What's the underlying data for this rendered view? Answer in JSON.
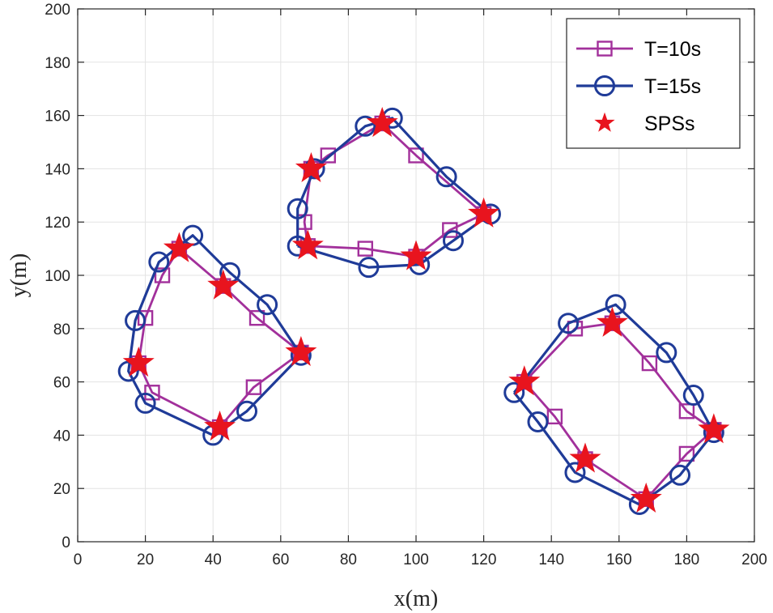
{
  "chart_data": {
    "type": "line",
    "xlabel": "x(m)",
    "ylabel": "y(m)",
    "xlim": [
      0,
      200
    ],
    "ylim": [
      0,
      200
    ],
    "xticks": [
      0,
      20,
      40,
      60,
      80,
      100,
      120,
      140,
      160,
      180,
      200
    ],
    "yticks": [
      0,
      20,
      40,
      60,
      80,
      100,
      120,
      140,
      160,
      180,
      200
    ],
    "grid": true,
    "legend_position": "top-right",
    "colors": {
      "t10": "#a2309b",
      "t15": "#1f3b98",
      "sps": "#e8141e",
      "grid": "#e3e3e3",
      "axis": "#262626"
    },
    "series": [
      {
        "name": "T=10s",
        "marker": "square",
        "paths": [
          [
            [
              42,
              43
            ],
            [
              52,
              58
            ],
            [
              66,
              71
            ],
            [
              53,
              84
            ],
            [
              43,
              96
            ],
            [
              30,
              110
            ],
            [
              25,
              100
            ],
            [
              20,
              84
            ],
            [
              18,
              67
            ],
            [
              22,
              56
            ],
            [
              42,
              43
            ]
          ],
          [
            [
              69,
              140
            ],
            [
              74,
              145
            ],
            [
              90,
              157
            ],
            [
              100,
              145
            ],
            [
              120,
              123
            ],
            [
              110,
              117
            ],
            [
              100,
              107
            ],
            [
              85,
              110
            ],
            [
              68,
              111
            ],
            [
              67,
              120
            ],
            [
              69,
              140
            ]
          ],
          [
            [
              132,
              60
            ],
            [
              141,
              47
            ],
            [
              150,
              31
            ],
            [
              168,
              16
            ],
            [
              180,
              33
            ],
            [
              188,
              42
            ],
            [
              180,
              49
            ],
            [
              169,
              67
            ],
            [
              158,
              82
            ],
            [
              147,
              80
            ],
            [
              132,
              60
            ]
          ]
        ]
      },
      {
        "name": "T=15s",
        "marker": "circle",
        "paths": [
          [
            [
              40,
              40
            ],
            [
              50,
              49
            ],
            [
              66,
              70
            ],
            [
              56,
              89
            ],
            [
              45,
              101
            ],
            [
              34,
              115
            ],
            [
              24,
              105
            ],
            [
              17,
              83
            ],
            [
              15,
              64
            ],
            [
              20,
              52
            ],
            [
              40,
              40
            ]
          ],
          [
            [
              65,
              111
            ],
            [
              65,
              125
            ],
            [
              70,
              140
            ],
            [
              85,
              156
            ],
            [
              93,
              159
            ],
            [
              109,
              137
            ],
            [
              122,
              123
            ],
            [
              111,
              113
            ],
            [
              101,
              104
            ],
            [
              86,
              103
            ],
            [
              65,
              111
            ]
          ],
          [
            [
              129,
              56
            ],
            [
              136,
              45
            ],
            [
              147,
              26
            ],
            [
              166,
              14
            ],
            [
              178,
              25
            ],
            [
              188,
              41
            ],
            [
              182,
              55
            ],
            [
              174,
              71
            ],
            [
              159,
              89
            ],
            [
              145,
              82
            ],
            [
              129,
              56
            ]
          ]
        ]
      },
      {
        "name": "SPSs",
        "marker": "star",
        "points": [
          [
            42,
            43
          ],
          [
            66,
            71
          ],
          [
            43,
            96
          ],
          [
            30,
            110
          ],
          [
            18,
            67
          ],
          [
            69,
            140
          ],
          [
            90,
            157
          ],
          [
            120,
            123
          ],
          [
            100,
            107
          ],
          [
            68,
            111
          ],
          [
            132,
            60
          ],
          [
            150,
            31
          ],
          [
            168,
            16
          ],
          [
            188,
            42
          ],
          [
            158,
            82
          ]
        ]
      }
    ]
  }
}
